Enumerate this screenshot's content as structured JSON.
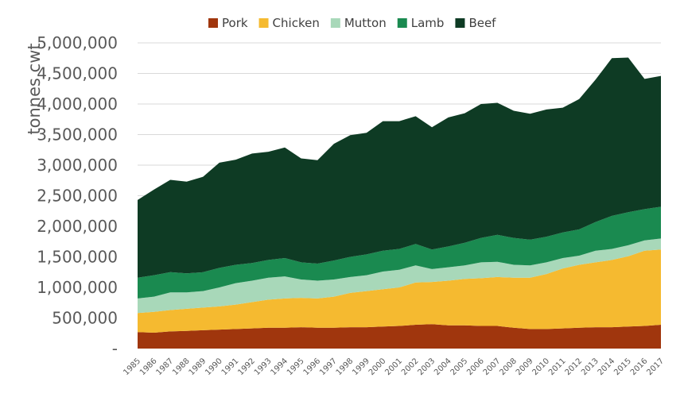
{
  "chart_data": {
    "type": "area",
    "stacked": true,
    "ylabel": "tonnes cwt",
    "ylim": [
      0,
      5000000
    ],
    "yticks": [
      0,
      500000,
      1000000,
      1500000,
      2000000,
      2500000,
      3000000,
      3500000,
      4000000,
      4500000,
      5000000
    ],
    "ytick_labels": [
      "-",
      "500,000",
      "1,000,000",
      "1,500,000",
      "2,000,000",
      "2,500,000",
      "3,000,000",
      "3,500,000",
      "4,000,000",
      "4,500,000",
      "5,000,000"
    ],
    "grid": "horizontal",
    "legend_position": "top",
    "x": [
      "1985",
      "1986",
      "1987",
      "1988",
      "1989",
      "1990",
      "1991",
      "1992",
      "1993",
      "1994",
      "1995",
      "1996",
      "1997",
      "1998",
      "1999",
      "2000",
      "2001",
      "2002",
      "2003",
      "2004",
      "2005",
      "2006",
      "2007",
      "2008",
      "2009",
      "2010",
      "2011",
      "2012",
      "2013",
      "2014",
      "2015",
      "2016",
      "2017"
    ],
    "series": [
      {
        "name": "Pork",
        "color": "#a0360d",
        "values": [
          270000,
          260000,
          280000,
          290000,
          300000,
          310000,
          320000,
          330000,
          340000,
          340000,
          350000,
          340000,
          340000,
          350000,
          350000,
          360000,
          370000,
          390000,
          400000,
          380000,
          380000,
          370000,
          370000,
          340000,
          320000,
          320000,
          330000,
          340000,
          350000,
          350000,
          360000,
          370000,
          390000
        ]
      },
      {
        "name": "Chicken",
        "color": "#f5ba30",
        "values": [
          310000,
          340000,
          350000,
          360000,
          370000,
          380000,
          400000,
          430000,
          460000,
          480000,
          480000,
          480000,
          510000,
          560000,
          590000,
          610000,
          630000,
          690000,
          690000,
          730000,
          760000,
          780000,
          800000,
          820000,
          840000,
          900000,
          980000,
          1030000,
          1060000,
          1100000,
          1150000,
          1230000,
          1230000
        ]
      },
      {
        "name": "Mutton",
        "color": "#a8d8b9",
        "values": [
          240000,
          250000,
          290000,
          270000,
          270000,
          310000,
          350000,
          350000,
          360000,
          360000,
          300000,
          290000,
          280000,
          260000,
          260000,
          290000,
          290000,
          280000,
          210000,
          220000,
          220000,
          260000,
          250000,
          210000,
          200000,
          190000,
          170000,
          150000,
          190000,
          180000,
          180000,
          170000,
          180000
        ]
      },
      {
        "name": "Lamb",
        "color": "#1a8a50",
        "values": [
          340000,
          350000,
          330000,
          310000,
          310000,
          320000,
          300000,
          290000,
          290000,
          300000,
          280000,
          280000,
          310000,
          330000,
          340000,
          340000,
          340000,
          350000,
          320000,
          340000,
          370000,
          400000,
          440000,
          440000,
          420000,
          420000,
          420000,
          430000,
          470000,
          540000,
          540000,
          510000,
          520000
        ]
      },
      {
        "name": "Beef",
        "color": "#0e3b24",
        "values": [
          1270000,
          1400000,
          1510000,
          1500000,
          1560000,
          1720000,
          1720000,
          1790000,
          1770000,
          1810000,
          1700000,
          1690000,
          1910000,
          1990000,
          1990000,
          2120000,
          2090000,
          2090000,
          2000000,
          2110000,
          2120000,
          2190000,
          2160000,
          2080000,
          2060000,
          2080000,
          2040000,
          2130000,
          2330000,
          2580000,
          2530000,
          2130000,
          2140000
        ]
      }
    ]
  }
}
